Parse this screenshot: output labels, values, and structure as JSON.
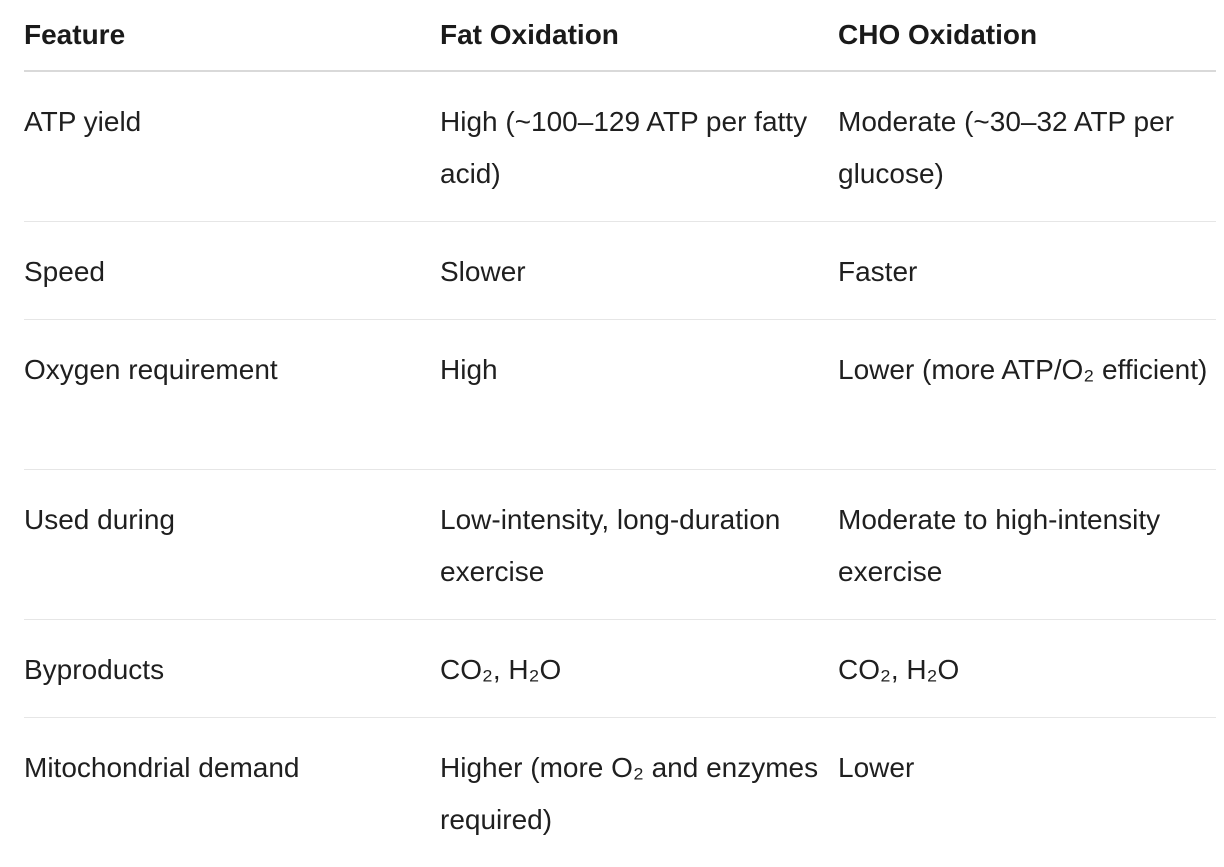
{
  "table": {
    "headers": [
      "Feature",
      "Fat Oxidation",
      "CHO Oxidation"
    ],
    "rows": [
      {
        "feature": "ATP yield",
        "fat": "High (~100–129 ATP per fatty acid)",
        "cho": "Moderate (~30–32 ATP per glucose)"
      },
      {
        "feature": "Speed",
        "fat": "Slower",
        "cho": "Faster"
      },
      {
        "feature": "Oxygen requirement",
        "fat": "High",
        "cho": "Lower (more ATP/O₂ efficient)"
      },
      {
        "feature": "Used during",
        "fat": "Low-intensity, long-duration exercise",
        "cho": "Moderate to high-intensity exercise"
      },
      {
        "feature": "Byproducts",
        "fat": "CO₂, H₂O",
        "cho": "CO₂, H₂O"
      },
      {
        "feature": "Mitochondrial demand",
        "fat": "Higher (more O₂ and enzymes required)",
        "cho": "Lower"
      }
    ]
  }
}
